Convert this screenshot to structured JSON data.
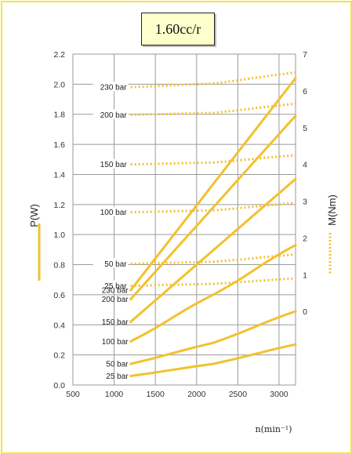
{
  "chart_data": {
    "type": "line",
    "title": "1.60cc/r",
    "xlabel": "n(min⁻¹)",
    "ylabel_left": "P(W)",
    "ylabel_right": "M(Nm)",
    "xlim": [
      500,
      3200
    ],
    "ylim_left": [
      0,
      2.2
    ],
    "ylim_right": [
      -2,
      7
    ],
    "x_ticks": [
      "500",
      "1000",
      "1500",
      "2000",
      "2500",
      "3000"
    ],
    "y_ticks_left": [
      "0.0",
      "0.2",
      "0.4",
      "0.6",
      "0.8",
      "1.0",
      "1.2",
      "1.4",
      "1.6",
      "1.8",
      "2.0",
      "2.2"
    ],
    "y_ticks_right": [
      "0",
      "1",
      "2",
      "3",
      "4",
      "5",
      "6",
      "7"
    ],
    "colors": {
      "series": "#f2c12e",
      "grid": "#9a9a9a",
      "frame": "#f3e53a",
      "title_bg": "#ffffcc"
    },
    "power_series": [
      {
        "name": "230 bar",
        "x": [
          1200,
          3200
        ],
        "y": [
          0.63,
          2.04
        ]
      },
      {
        "name": "200 bar",
        "x": [
          1200,
          3200
        ],
        "y": [
          0.57,
          1.79
        ]
      },
      {
        "name": "150 bar",
        "x": [
          1200,
          3200
        ],
        "y": [
          0.42,
          1.37
        ]
      },
      {
        "name": "100 bar",
        "x": [
          1200,
          2200,
          3200
        ],
        "y": [
          0.29,
          0.6,
          0.93
        ]
      },
      {
        "name": "50 bar",
        "x": [
          1200,
          2200,
          3200
        ],
        "y": [
          0.14,
          0.28,
          0.49
        ]
      },
      {
        "name": "25 bar",
        "x": [
          1200,
          2200,
          3200
        ],
        "y": [
          0.06,
          0.14,
          0.27
        ]
      }
    ],
    "torque_series": [
      {
        "name": "230 bar",
        "x": [
          1200,
          2200,
          3200
        ],
        "y": [
          6.1,
          6.2,
          6.5
        ]
      },
      {
        "name": "200 bar",
        "x": [
          1200,
          2200,
          3200
        ],
        "y": [
          5.35,
          5.4,
          5.65
        ]
      },
      {
        "name": "150 bar",
        "x": [
          1200,
          2200,
          3200
        ],
        "y": [
          4.0,
          4.05,
          4.25
        ]
      },
      {
        "name": "100 bar",
        "x": [
          1200,
          2200,
          3200
        ],
        "y": [
          2.7,
          2.75,
          2.95
        ]
      },
      {
        "name": "50 bar",
        "x": [
          1200,
          2200,
          3200
        ],
        "y": [
          1.3,
          1.35,
          1.55
        ]
      },
      {
        "name": "25 bar",
        "x": [
          1200,
          2200,
          3200
        ],
        "y": [
          0.7,
          0.75,
          0.9
        ]
      }
    ]
  }
}
